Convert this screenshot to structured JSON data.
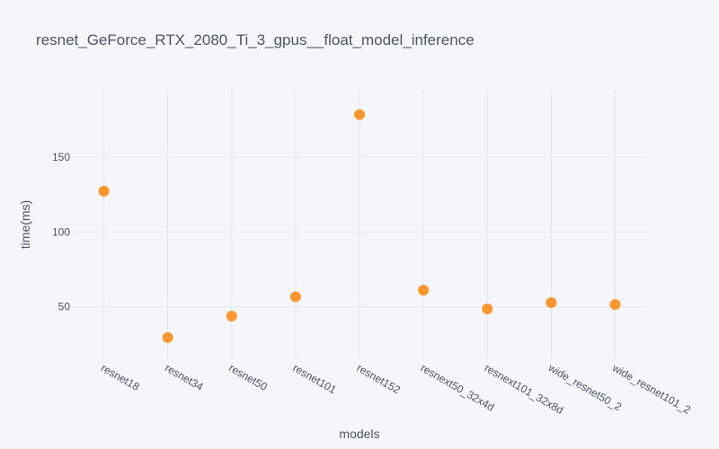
{
  "chart_data": {
    "type": "scatter",
    "title": "resnet_GeForce_RTX_2080_Ti_3_gpus__float_model_inference",
    "xlabel": "models",
    "ylabel": "time(ms)",
    "categories": [
      "resnet18",
      "resnet34",
      "resnet50",
      "resnet101",
      "resnet152",
      "resnext50_32x4d",
      "resnext101_32x8d",
      "wide_resnet50_2",
      "wide_resnet101_2"
    ],
    "values": [
      127.3,
      29.5,
      43.8,
      56.7,
      178.4,
      61.1,
      48.6,
      52.8,
      51.5
    ],
    "yticks": [
      50,
      100,
      150
    ],
    "ylim": [
      15,
      195
    ],
    "grid": true,
    "legend": "none",
    "marker_color": "#fa9630"
  }
}
